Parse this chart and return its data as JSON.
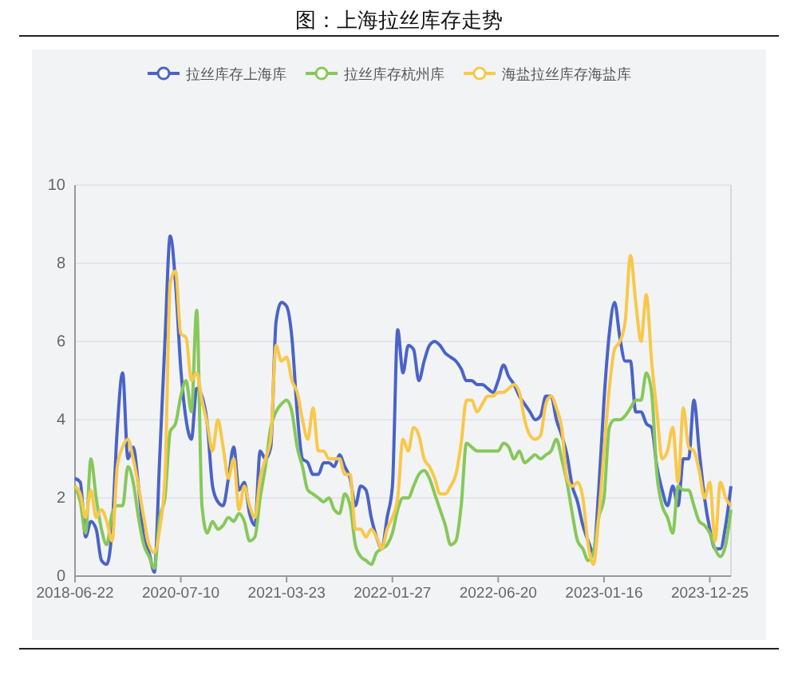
{
  "chart_data": {
    "type": "line",
    "title": "图：上海拉丝库存走势",
    "categories": [
      "2018-06-22",
      null,
      null,
      null,
      null,
      null,
      null,
      null,
      null,
      null,
      null,
      null,
      null,
      null,
      null,
      null,
      null,
      null,
      null,
      null,
      "2020-07-10",
      null,
      null,
      null,
      null,
      null,
      null,
      null,
      null,
      null,
      null,
      null,
      null,
      null,
      null,
      null,
      null,
      null,
      null,
      null,
      "2021-03-23",
      null,
      null,
      null,
      null,
      null,
      null,
      null,
      null,
      null,
      null,
      null,
      null,
      null,
      null,
      null,
      null,
      null,
      null,
      null,
      "2022-01-27",
      null,
      null,
      null,
      null,
      null,
      null,
      null,
      null,
      null,
      null,
      null,
      null,
      null,
      null,
      null,
      null,
      null,
      null,
      null,
      "2022-06-20",
      null,
      null,
      null,
      null,
      null,
      null,
      null,
      null,
      null,
      null,
      null,
      null,
      null,
      null,
      null,
      null,
      null,
      null,
      null,
      "2023-01-16",
      null,
      null,
      null,
      null,
      null,
      null,
      null,
      null,
      null,
      null,
      null,
      null,
      null,
      null,
      null,
      null,
      null,
      null,
      null,
      "2023-12-25",
      null,
      null,
      null,
      null
    ],
    "series": [
      {
        "name": "拉丝库存上海库",
        "color": "#4a63c8",
        "values": [
          2.5,
          2.4,
          1.0,
          1.4,
          1.2,
          0.4,
          0.3,
          1.2,
          3.8,
          5.2,
          3.0,
          3.3,
          2.3,
          1.0,
          0.6,
          0.1,
          3.0,
          6.0,
          8.7,
          7.5,
          5.3,
          4.0,
          3.5,
          4.8,
          4.6,
          3.9,
          2.3,
          1.9,
          1.8,
          2.5,
          3.3,
          2.2,
          2.4,
          1.6,
          1.3,
          3.2,
          3.0,
          3.3,
          6.5,
          7.0,
          6.9,
          6.1,
          4.2,
          3.0,
          2.9,
          2.6,
          2.6,
          2.9,
          2.9,
          2.8,
          3.1,
          2.8,
          2.5,
          1.8,
          2.3,
          2.2,
          1.5,
          1.0,
          0.7,
          1.5,
          2.3,
          6.3,
          5.2,
          5.9,
          5.8,
          5.0,
          5.5,
          5.9,
          6.0,
          5.9,
          5.7,
          5.6,
          5.5,
          5.3,
          5.0,
          5.0,
          4.9,
          4.9,
          4.8,
          4.7,
          5.0,
          5.4,
          5.1,
          4.9,
          4.6,
          4.4,
          4.2,
          4.0,
          4.1,
          4.6,
          4.6,
          4.0,
          3.6,
          3.1,
          2.3,
          1.9,
          1.3,
          0.9,
          0.6,
          2.2,
          4.5,
          6.2,
          7.0,
          6.1,
          5.5,
          5.5,
          4.2,
          4.2,
          3.9,
          3.8,
          2.8,
          2.2,
          1.8,
          2.3,
          1.8,
          3.0,
          3.0,
          4.5,
          3.2,
          2.0,
          1.2,
          0.7,
          0.7,
          1.3,
          2.3
        ]
      },
      {
        "name": "拉丝库存杭州库",
        "color": "#86c85a",
        "values": [
          2.3,
          1.9,
          1.1,
          3.0,
          2.0,
          1.2,
          0.8,
          1.6,
          1.8,
          1.8,
          2.8,
          2.4,
          1.5,
          0.8,
          0.5,
          0.2,
          1.5,
          2.0,
          3.7,
          3.9,
          4.6,
          5.0,
          4.2,
          6.8,
          1.8,
          1.1,
          1.4,
          1.2,
          1.3,
          1.5,
          1.4,
          1.6,
          1.4,
          0.9,
          1.0,
          2.0,
          2.8,
          3.8,
          4.2,
          4.4,
          4.5,
          4.2,
          3.3,
          2.8,
          2.2,
          2.1,
          2.0,
          1.9,
          2.0,
          1.7,
          1.6,
          2.1,
          1.8,
          0.8,
          0.5,
          0.4,
          0.3,
          0.6,
          0.7,
          0.8,
          1.1,
          1.7,
          2.0,
          2.0,
          2.3,
          2.6,
          2.7,
          2.5,
          2.1,
          1.7,
          1.3,
          0.8,
          0.9,
          1.8,
          3.4,
          3.3,
          3.2,
          3.2,
          3.2,
          3.2,
          3.2,
          3.4,
          3.3,
          3.0,
          3.2,
          2.9,
          3.0,
          3.1,
          3.0,
          3.1,
          3.2,
          3.5,
          3.0,
          2.4,
          1.6,
          0.9,
          0.7,
          0.4,
          0.6,
          1.5,
          2.0,
          3.8,
          4.0,
          4.0,
          4.1,
          4.3,
          4.5,
          4.5,
          5.2,
          4.7,
          2.6,
          1.8,
          1.5,
          1.1,
          2.3,
          2.2,
          2.2,
          1.8,
          1.4,
          1.3,
          1.1,
          0.7,
          0.5,
          0.8,
          1.7
        ]
      },
      {
        "name": "海盐拉丝库存海盐库",
        "color": "#f8c84a",
        "values": [
          2.3,
          2.1,
          1.5,
          2.2,
          1.5,
          1.7,
          1.4,
          0.9,
          2.8,
          3.3,
          3.5,
          3.0,
          2.3,
          1.5,
          0.8,
          0.6,
          1.2,
          2.5,
          7.5,
          7.8,
          6.2,
          6.1,
          5.0,
          5.2,
          4.5,
          3.9,
          3.2,
          4.0,
          3.3,
          2.5,
          3.0,
          1.7,
          2.3,
          1.8,
          1.5,
          2.5,
          3.0,
          3.5,
          5.9,
          5.5,
          5.6,
          5.0,
          4.7,
          4.0,
          3.5,
          4.3,
          3.2,
          3.2,
          3.0,
          3.0,
          3.0,
          2.6,
          2.6,
          1.2,
          1.2,
          1.0,
          1.2,
          1.0,
          0.7,
          1.2,
          1.5,
          2.0,
          3.5,
          3.2,
          3.8,
          3.6,
          3.0,
          2.8,
          2.5,
          2.1,
          2.1,
          2.3,
          2.6,
          3.4,
          4.5,
          4.5,
          4.2,
          4.4,
          4.6,
          4.6,
          4.7,
          4.7,
          4.8,
          4.9,
          4.7,
          4.0,
          3.6,
          3.5,
          3.6,
          4.4,
          4.6,
          4.3,
          3.8,
          2.5,
          2.3,
          2.4,
          2.0,
          0.8,
          0.3,
          1.5,
          3.2,
          4.8,
          5.8,
          6.0,
          6.5,
          8.2,
          7.0,
          6.0,
          7.2,
          5.5,
          4.2,
          3.0,
          3.2,
          3.8,
          2.4,
          4.3,
          3.3,
          3.2,
          2.7,
          2.0,
          2.4,
          0.9,
          2.4,
          2.0,
          1.8
        ]
      }
    ],
    "ylim": [
      0,
      10
    ],
    "yticks": [
      0,
      2,
      4,
      6,
      8,
      10
    ],
    "grid": "y",
    "legend": "top",
    "marker": "none",
    "line_style": "solid"
  }
}
